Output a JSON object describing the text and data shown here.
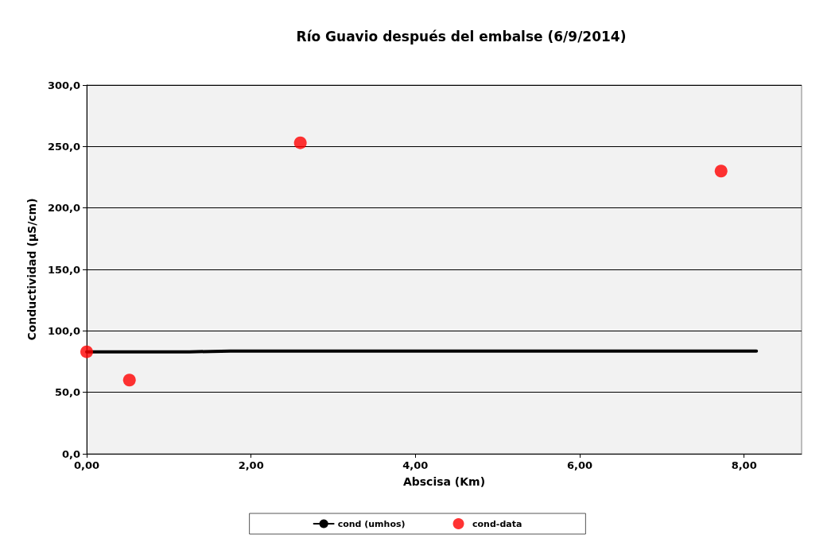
{
  "chart_data": {
    "type": "line",
    "title": "Río Guavio después del embalse (6/9/2014)",
    "xlabel": "Abscisa (Km)",
    "ylabel": "Conductividad (µS/cm)",
    "xlim": [
      0,
      8.7
    ],
    "xticks": [
      {
        "value": 0,
        "label": "0,00"
      },
      {
        "value": 2,
        "label": "2,00"
      },
      {
        "value": 4,
        "label": "4,00"
      },
      {
        "value": 6,
        "label": "6,00"
      },
      {
        "value": 8,
        "label": "8,00"
      }
    ],
    "ylim": [
      0,
      300
    ],
    "yticks": [
      {
        "value": 0,
        "label": "0,0"
      },
      {
        "value": 50,
        "label": "50,0"
      },
      {
        "value": 100,
        "label": "100,0"
      },
      {
        "value": 150,
        "label": "150,0"
      },
      {
        "value": 200,
        "label": "200,0"
      },
      {
        "value": 250,
        "label": "250,0"
      },
      {
        "value": 300,
        "label": "300,0"
      }
    ],
    "grid": "y",
    "legend": "bottom",
    "series": [
      {
        "name": "cond (umhos)",
        "color": "#000000",
        "marker": "none",
        "x": [
          0,
          1.25,
          1.75,
          8.15
        ],
        "values": [
          83,
          83,
          83.5,
          83.5
        ]
      },
      {
        "name": "cond-data",
        "type": "scatter",
        "color": "#ff0000",
        "marker": "circle",
        "x": [
          0,
          0.52,
          2.6,
          7.72
        ],
        "values": [
          83,
          60,
          253,
          230
        ]
      }
    ]
  }
}
